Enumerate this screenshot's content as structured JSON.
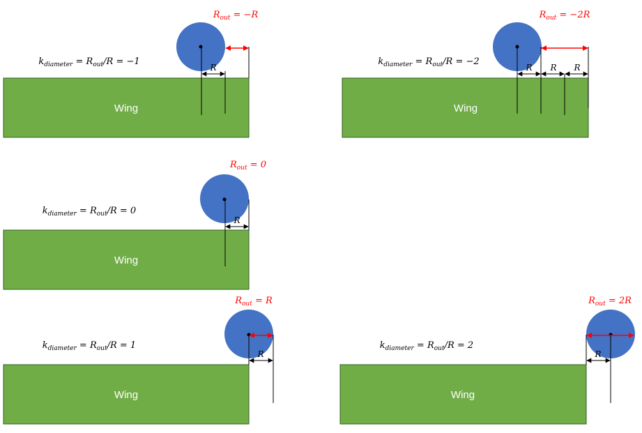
{
  "colors": {
    "wing": "#70ad47",
    "wing_border": "#2f5f1f",
    "rotor": "#4472c4",
    "rout_arrow": "#ff0000",
    "dimension": "#000000"
  },
  "wing_label": "Wing",
  "r_label": "R",
  "panels": [
    {
      "id": "k-minus-1",
      "k_value": -1,
      "formula": "k_diameter = R_out/R = −1",
      "rout_label": "R_out = −R",
      "r_dim_count": 1
    },
    {
      "id": "k-minus-2",
      "k_value": -2,
      "formula": "k_diameter = R_out/R = −2",
      "rout_label": "R_out = −2R",
      "r_dim_count": 3
    },
    {
      "id": "k-0",
      "k_value": 0,
      "formula": "k_diameter = R_out/R = 0",
      "rout_label": "R_out = 0",
      "r_dim_count": 1
    },
    {
      "id": "k-1",
      "k_value": 1,
      "formula": "k_diameter = R_out/R = 1",
      "rout_label": "R_out = R",
      "r_dim_count": 1
    },
    {
      "id": "k-2",
      "k_value": 2,
      "formula": "k_diameter = R_out/R = 2",
      "rout_label": "R_out = 2R",
      "r_dim_count": 1
    }
  ]
}
